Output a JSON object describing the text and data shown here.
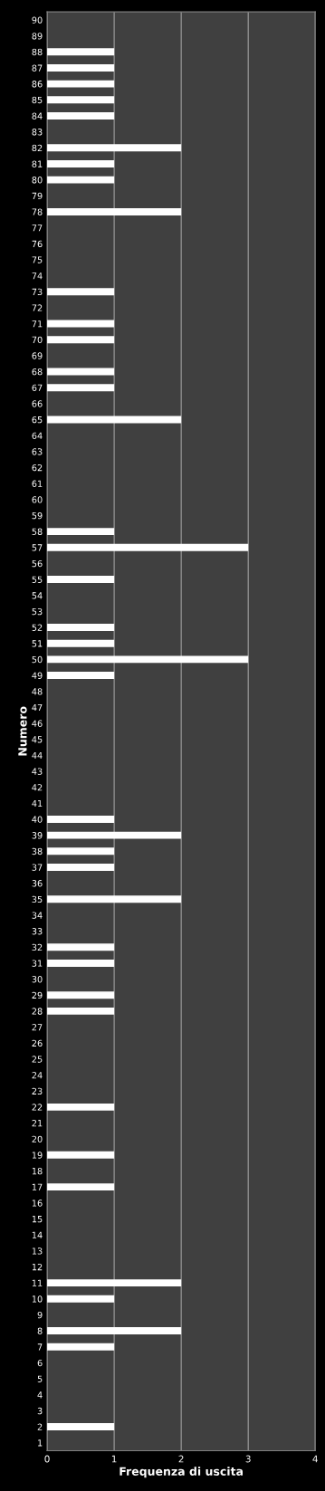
{
  "chart_data": {
    "type": "bar",
    "orientation": "horizontal",
    "xlabel": "Frequenza di uscita",
    "ylabel": "Numero",
    "categories": [
      "90",
      "89",
      "88",
      "87",
      "86",
      "85",
      "84",
      "83",
      "82",
      "81",
      "80",
      "79",
      "78",
      "77",
      "76",
      "75",
      "74",
      "73",
      "72",
      "71",
      "70",
      "69",
      "68",
      "67",
      "66",
      "65",
      "64",
      "63",
      "62",
      "61",
      "60",
      "59",
      "58",
      "57",
      "56",
      "55",
      "54",
      "53",
      "52",
      "51",
      "50",
      "49",
      "48",
      "47",
      "46",
      "45",
      "44",
      "43",
      "42",
      "41",
      "40",
      "39",
      "38",
      "37",
      "36",
      "35",
      "34",
      "33",
      "32",
      "31",
      "30",
      "29",
      "28",
      "27",
      "26",
      "25",
      "24",
      "23",
      "22",
      "21",
      "20",
      "19",
      "18",
      "17",
      "16",
      "15",
      "14",
      "13",
      "12",
      "11",
      "10",
      "9",
      "8",
      "7",
      "6",
      "5",
      "4",
      "3",
      "2",
      "1"
    ],
    "values": [
      0,
      0,
      1,
      1,
      1,
      1,
      1,
      0,
      2,
      1,
      1,
      0,
      2,
      0,
      0,
      0,
      0,
      1,
      0,
      1,
      1,
      0,
      1,
      1,
      0,
      2,
      0,
      0,
      0,
      0,
      0,
      0,
      1,
      3,
      0,
      1,
      0,
      0,
      1,
      1,
      3,
      1,
      0,
      0,
      0,
      0,
      0,
      0,
      0,
      0,
      1,
      2,
      1,
      1,
      0,
      2,
      0,
      0,
      1,
      1,
      0,
      1,
      1,
      0,
      0,
      0,
      0,
      0,
      1,
      0,
      0,
      1,
      0,
      1,
      0,
      0,
      0,
      0,
      0,
      2,
      1,
      0,
      2,
      1,
      0,
      0,
      0,
      0,
      1,
      0
    ],
    "color": "#ffffff",
    "xlim": [
      0,
      4
    ],
    "xticks": [
      0,
      1,
      2,
      3,
      4
    ],
    "grid": "x",
    "legend": false
  }
}
